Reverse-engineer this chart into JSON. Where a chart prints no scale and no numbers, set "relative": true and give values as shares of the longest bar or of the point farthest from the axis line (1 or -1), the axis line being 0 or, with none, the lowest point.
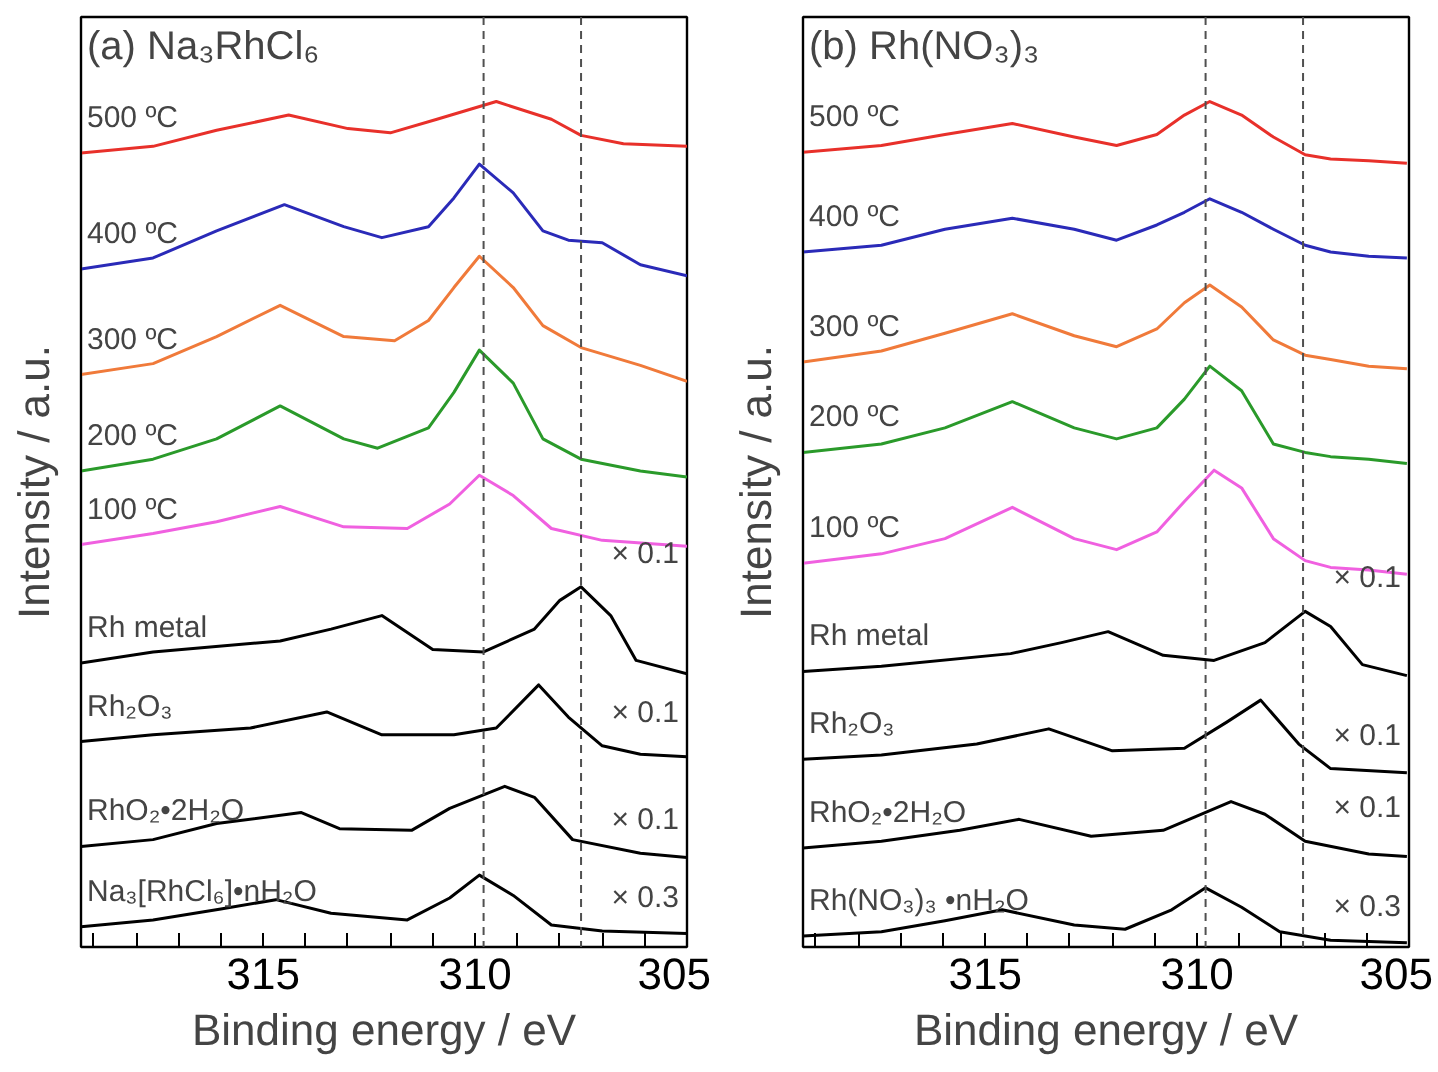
{
  "chart_data": [
    {
      "type": "line",
      "title": "(a) Na₃RhCl₆",
      "xlabel": "Binding energy / eV",
      "ylabel": "Intensity / a.u.",
      "relative": true,
      "tick_labels": "x",
      "grid": false,
      "legend": false,
      "xlim": [
        319.3,
        305
      ],
      "xticks": [
        {
          "value": 319,
          "label": null
        },
        {
          "value": 318,
          "label": null
        },
        {
          "value": 317,
          "label": null
        },
        {
          "value": 316,
          "label": null
        },
        315,
        {
          "value": 314,
          "label": null
        },
        {
          "value": 313,
          "label": null
        },
        {
          "value": 312,
          "label": null
        },
        {
          "value": 311,
          "label": null
        },
        310,
        {
          "value": 309,
          "label": null
        },
        {
          "value": 308,
          "label": null
        },
        {
          "value": 307,
          "label": null
        },
        {
          "value": 306,
          "label": null
        },
        305
      ],
      "ref_lines": [
        {
          "axis": "x",
          "value": 309.8,
          "label": null,
          "color": "#505050",
          "line_style": "dashed"
        },
        {
          "axis": "x",
          "value": 307.5,
          "label": null,
          "color": "#505050",
          "line_style": "dashed"
        }
      ],
      "series": [
        {
          "name": "500 ºC",
          "color": "#e8302a",
          "x": [
            319.3,
            317.6,
            316.1,
            314.4,
            313,
            312,
            310.9,
            309.5,
            308.2,
            307.5,
            306.5,
            305
          ],
          "values": [
            0.939,
            0.947,
            0.966,
            0.984,
            0.968,
            0.963,
            0.979,
            1.0,
            0.979,
            0.96,
            0.95,
            0.947
          ]
        },
        {
          "name": "400 ºC",
          "color": "#2a2ab8",
          "x": [
            319.3,
            317.6,
            316.1,
            314.5,
            313.1,
            312.2,
            311.1,
            310.5,
            309.9,
            309.1,
            308.4,
            307.8,
            307,
            306.1,
            305
          ],
          "values": [
            0.802,
            0.815,
            0.847,
            0.878,
            0.852,
            0.839,
            0.852,
            0.886,
            0.926,
            0.892,
            0.847,
            0.836,
            0.833,
            0.807,
            0.794
          ]
        },
        {
          "name": "300 ºC",
          "color": "#f07a3a",
          "x": [
            319.3,
            317.6,
            316.1,
            314.6,
            313.1,
            311.9,
            311.1,
            310.5,
            309.9,
            309.1,
            308.4,
            307.5,
            306.1,
            305
          ],
          "values": [
            0.677,
            0.69,
            0.722,
            0.759,
            0.722,
            0.717,
            0.741,
            0.78,
            0.817,
            0.78,
            0.735,
            0.709,
            0.688,
            0.669
          ]
        },
        {
          "name": "200 ºC",
          "color": "#2a9a2a",
          "x": [
            319.3,
            317.6,
            316.1,
            314.6,
            313.1,
            312.3,
            311.1,
            310.5,
            309.9,
            309.1,
            308.4,
            307.5,
            306.1,
            305
          ],
          "values": [
            0.563,
            0.577,
            0.601,
            0.64,
            0.601,
            0.59,
            0.614,
            0.656,
            0.706,
            0.667,
            0.601,
            0.577,
            0.563,
            0.556
          ]
        },
        {
          "name": "100 ºC",
          "color": "#f060e0",
          "x": [
            319.3,
            317.6,
            316.1,
            314.6,
            313.1,
            311.6,
            310.6,
            309.9,
            309.1,
            308.2,
            307,
            305
          ],
          "values": [
            0.476,
            0.489,
            0.503,
            0.521,
            0.497,
            0.495,
            0.524,
            0.558,
            0.534,
            0.495,
            0.481,
            0.474
          ]
        },
        {
          "name": "Rh metal",
          "color": "#000000",
          "x": [
            319.3,
            317.6,
            314.6,
            313.4,
            312.2,
            311,
            309.8,
            308.6,
            308,
            307.5,
            306.8,
            306.2,
            305
          ],
          "values": [
            0.336,
            0.349,
            0.362,
            0.376,
            0.392,
            0.352,
            0.349,
            0.376,
            0.41,
            0.426,
            0.392,
            0.339,
            0.323
          ]
        },
        {
          "name": "Rh₂O₃",
          "color": "#000000",
          "x": [
            319.3,
            317.6,
            315.3,
            313.5,
            312.2,
            310.5,
            309.5,
            308.5,
            307.8,
            307,
            306.1,
            305
          ],
          "values": [
            0.243,
            0.251,
            0.259,
            0.278,
            0.251,
            0.251,
            0.259,
            0.31,
            0.272,
            0.238,
            0.228,
            0.225
          ]
        },
        {
          "name": "RhO₂•2H₂O",
          "color": "#000000",
          "x": [
            319.3,
            317.6,
            316.1,
            314.1,
            313.2,
            311.5,
            310.6,
            309.3,
            308.6,
            307.7,
            306.1,
            305
          ],
          "values": [
            0.119,
            0.127,
            0.146,
            0.159,
            0.14,
            0.138,
            0.164,
            0.19,
            0.177,
            0.127,
            0.111,
            0.106
          ]
        },
        {
          "name": "Na₃[RhCl₆]•nH₂O",
          "color": "#000000",
          "x": [
            319.3,
            317.6,
            316,
            314.7,
            313.4,
            311.6,
            310.6,
            309.9,
            309.1,
            308.2,
            307,
            305
          ],
          "values": [
            0.024,
            0.032,
            0.045,
            0.056,
            0.04,
            0.032,
            0.058,
            0.085,
            0.061,
            0.026,
            0.019,
            0.016
          ]
        }
      ],
      "annotations": [
        "× 0.1",
        "× 0.1",
        "× 0.1",
        "× 0.3"
      ]
    },
    {
      "type": "line",
      "title": "(b) Rh(NO₃)₃",
      "xlabel": "Binding energy / eV",
      "ylabel": "Intensity / a.u.",
      "relative": true,
      "tick_labels": "x",
      "grid": false,
      "legend": false,
      "xlim": [
        319.3,
        305
      ],
      "xticks": [
        {
          "value": 319,
          "label": null
        },
        {
          "value": 318,
          "label": null
        },
        {
          "value": 317,
          "label": null
        },
        {
          "value": 316,
          "label": null
        },
        315,
        {
          "value": 314,
          "label": null
        },
        {
          "value": 313,
          "label": null
        },
        {
          "value": 312,
          "label": null
        },
        {
          "value": 311,
          "label": null
        },
        310,
        {
          "value": 309,
          "label": null
        },
        {
          "value": 308,
          "label": null
        },
        {
          "value": 307,
          "label": null
        },
        {
          "value": 306,
          "label": null
        },
        305
      ],
      "ref_lines": [
        {
          "axis": "x",
          "value": 309.8,
          "label": null,
          "color": "#505050",
          "line_style": "dashed"
        },
        {
          "axis": "x",
          "value": 307.5,
          "label": null,
          "color": "#505050",
          "line_style": "dashed"
        }
      ],
      "series": [
        {
          "name": "500 ºC",
          "color": "#e8302a",
          "x": [
            319.3,
            317.45,
            315.95,
            314.36,
            312.9,
            311.9,
            310.95,
            310.3,
            309.7,
            308.95,
            308.2,
            307.45,
            306.85,
            305.95,
            305.05
          ],
          "values": [
            0.94,
            0.948,
            0.961,
            0.974,
            0.958,
            0.948,
            0.961,
            0.984,
            1.0,
            0.984,
            0.958,
            0.937,
            0.932,
            0.93,
            0.927
          ]
        },
        {
          "name": "400 ºC",
          "color": "#2a2ab8",
          "x": [
            319.3,
            317.45,
            315.95,
            314.36,
            312.9,
            311.9,
            310.95,
            310.3,
            309.7,
            308.95,
            308.2,
            307.45,
            306.85,
            305.95,
            305.05
          ],
          "values": [
            0.822,
            0.83,
            0.849,
            0.862,
            0.849,
            0.836,
            0.854,
            0.869,
            0.885,
            0.869,
            0.849,
            0.83,
            0.822,
            0.817,
            0.815
          ]
        },
        {
          "name": "300 ºC",
          "color": "#f07a3a",
          "x": [
            319.3,
            317.45,
            315.95,
            314.36,
            312.9,
            311.9,
            310.95,
            310.3,
            309.7,
            308.95,
            308.2,
            307.45,
            306.85,
            305.95,
            305.05
          ],
          "values": [
            0.692,
            0.705,
            0.726,
            0.749,
            0.723,
            0.71,
            0.731,
            0.762,
            0.783,
            0.757,
            0.718,
            0.7,
            0.695,
            0.687,
            0.684
          ]
        },
        {
          "name": "200 ºC",
          "color": "#2a9a2a",
          "x": [
            319.3,
            317.45,
            315.95,
            314.36,
            312.9,
            311.9,
            310.95,
            310.3,
            309.7,
            308.95,
            308.2,
            307.45,
            306.85,
            305.95,
            305.05
          ],
          "values": [
            0.585,
            0.595,
            0.614,
            0.645,
            0.614,
            0.601,
            0.614,
            0.648,
            0.687,
            0.658,
            0.595,
            0.585,
            0.58,
            0.577,
            0.572
          ]
        },
        {
          "name": "100 ºC",
          "color": "#f060e0",
          "x": [
            319.3,
            317.45,
            315.95,
            314.36,
            312.9,
            311.9,
            310.95,
            310.3,
            309.6,
            308.95,
            308.2,
            307.45,
            306.85,
            305.95,
            305.05
          ],
          "values": [
            0.454,
            0.465,
            0.483,
            0.52,
            0.483,
            0.47,
            0.491,
            0.527,
            0.564,
            0.543,
            0.483,
            0.457,
            0.449,
            0.446,
            0.441
          ]
        },
        {
          "name": "Rh metal",
          "color": "#000000",
          "x": [
            319.3,
            317.45,
            314.4,
            313.2,
            312.1,
            310.8,
            309.6,
            308.4,
            307.45,
            306.85,
            306.1,
            305.05
          ],
          "values": [
            0.326,
            0.332,
            0.347,
            0.36,
            0.373,
            0.345,
            0.339,
            0.36,
            0.397,
            0.379,
            0.334,
            0.321
          ]
        },
        {
          "name": "Rh₂O₃",
          "color": "#000000",
          "x": [
            319.3,
            317.45,
            315.2,
            313.5,
            312,
            310.3,
            309.3,
            308.5,
            307.6,
            306.85,
            305.05
          ],
          "values": [
            0.222,
            0.227,
            0.24,
            0.258,
            0.232,
            0.235,
            0.266,
            0.292,
            0.24,
            0.211,
            0.206
          ]
        },
        {
          "name": "RhO₂•2H₂O",
          "color": "#000000",
          "x": [
            319.3,
            317.45,
            315.6,
            314.2,
            312.5,
            310.8,
            309.2,
            308.4,
            307.45,
            305.95,
            305.05
          ],
          "values": [
            0.117,
            0.125,
            0.138,
            0.151,
            0.131,
            0.138,
            0.172,
            0.157,
            0.125,
            0.11,
            0.107
          ]
        },
        {
          "name": "Rh(NO₃)₃ •nH₂O",
          "color": "#000000",
          "x": [
            319.3,
            317.45,
            315.95,
            314.6,
            312.9,
            311.7,
            310.6,
            309.8,
            308.95,
            308.05,
            306.85,
            305.05
          ],
          "values": [
            0.013,
            0.018,
            0.031,
            0.044,
            0.026,
            0.021,
            0.044,
            0.07,
            0.047,
            0.018,
            0.008,
            0.005
          ]
        }
      ],
      "annotations": [
        "× 0.1",
        "× 0.1",
        "× 0.1",
        "× 0.3"
      ]
    }
  ]
}
